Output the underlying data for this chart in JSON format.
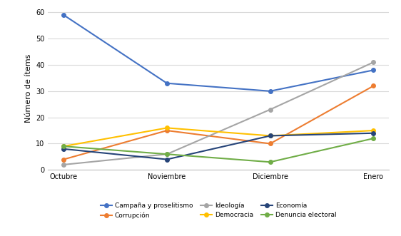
{
  "x_labels": [
    "Octubre",
    "Noviembre",
    "Diciembre",
    "Enero"
  ],
  "series": {
    "Campaña y proselitismo": {
      "values": [
        59,
        33,
        30,
        38
      ],
      "color": "#4472C4",
      "marker": "o"
    },
    "Corrupción": {
      "values": [
        4,
        15,
        10,
        32
      ],
      "color": "#ED7D31",
      "marker": "o"
    },
    "Ideología": {
      "values": [
        2,
        6,
        23,
        41
      ],
      "color": "#A5A5A5",
      "marker": "o"
    },
    "Democracia": {
      "values": [
        9,
        16,
        13,
        15
      ],
      "color": "#FFC000",
      "marker": "o"
    },
    "Economía": {
      "values": [
        8,
        4,
        13,
        14
      ],
      "color": "#264478",
      "marker": "o"
    },
    "Denuncia electoral": {
      "values": [
        9,
        6,
        3,
        12
      ],
      "color": "#70AD47",
      "marker": "o"
    }
  },
  "ylabel": "Número de ítems",
  "ylim": [
    0,
    62
  ],
  "yticks": [
    0,
    10,
    20,
    30,
    40,
    50,
    60
  ],
  "legend_order": [
    "Campaña y proselitismo",
    "Corrupción",
    "Ideología",
    "Democracia",
    "Economía",
    "Denuncia electoral"
  ],
  "plot_order": [
    "Campaña y proselitismo",
    "Corrupción",
    "Ideología",
    "Democracia",
    "Economía",
    "Denuncia electoral"
  ],
  "background_color": "#ffffff",
  "grid_color": "#d9d9d9",
  "line_width": 1.5,
  "marker_size": 4,
  "tick_fontsize": 7,
  "ylabel_fontsize": 8,
  "legend_fontsize": 6.5
}
